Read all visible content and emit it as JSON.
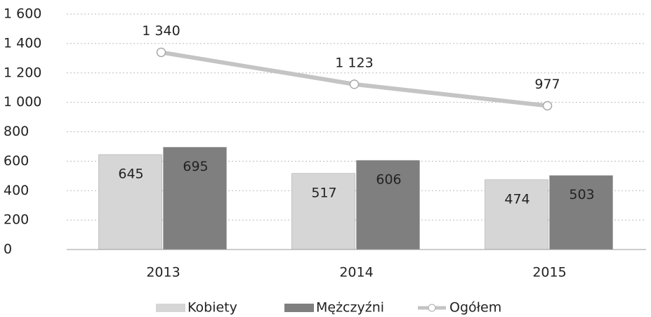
{
  "chart_data": {
    "type": "bar",
    "categories": [
      "2013",
      "2014",
      "2015"
    ],
    "series": [
      {
        "name": "Kobiety",
        "color": "#d6d6d6",
        "values": [
          645,
          517,
          474
        ]
      },
      {
        "name": "Mężczyźni",
        "color": "#7f7f7f",
        "values": [
          695,
          606,
          503
        ]
      },
      {
        "name": "Ogółem",
        "color": "#c4c4c4",
        "type": "line",
        "values": [
          1340,
          1123,
          977
        ],
        "value_labels": [
          "1 340",
          "1 123",
          "977"
        ]
      }
    ],
    "ylim": [
      0,
      1600
    ],
    "yticks": [
      0,
      200,
      400,
      600,
      800,
      {
        "value": 1000,
        "label": "1 000"
      },
      {
        "value": 1200,
        "label": "1 200"
      },
      {
        "value": 1400,
        "label": "1 400"
      },
      {
        "value": 1600,
        "label": "1 600"
      }
    ],
    "grid": true,
    "legend": "bottom"
  }
}
